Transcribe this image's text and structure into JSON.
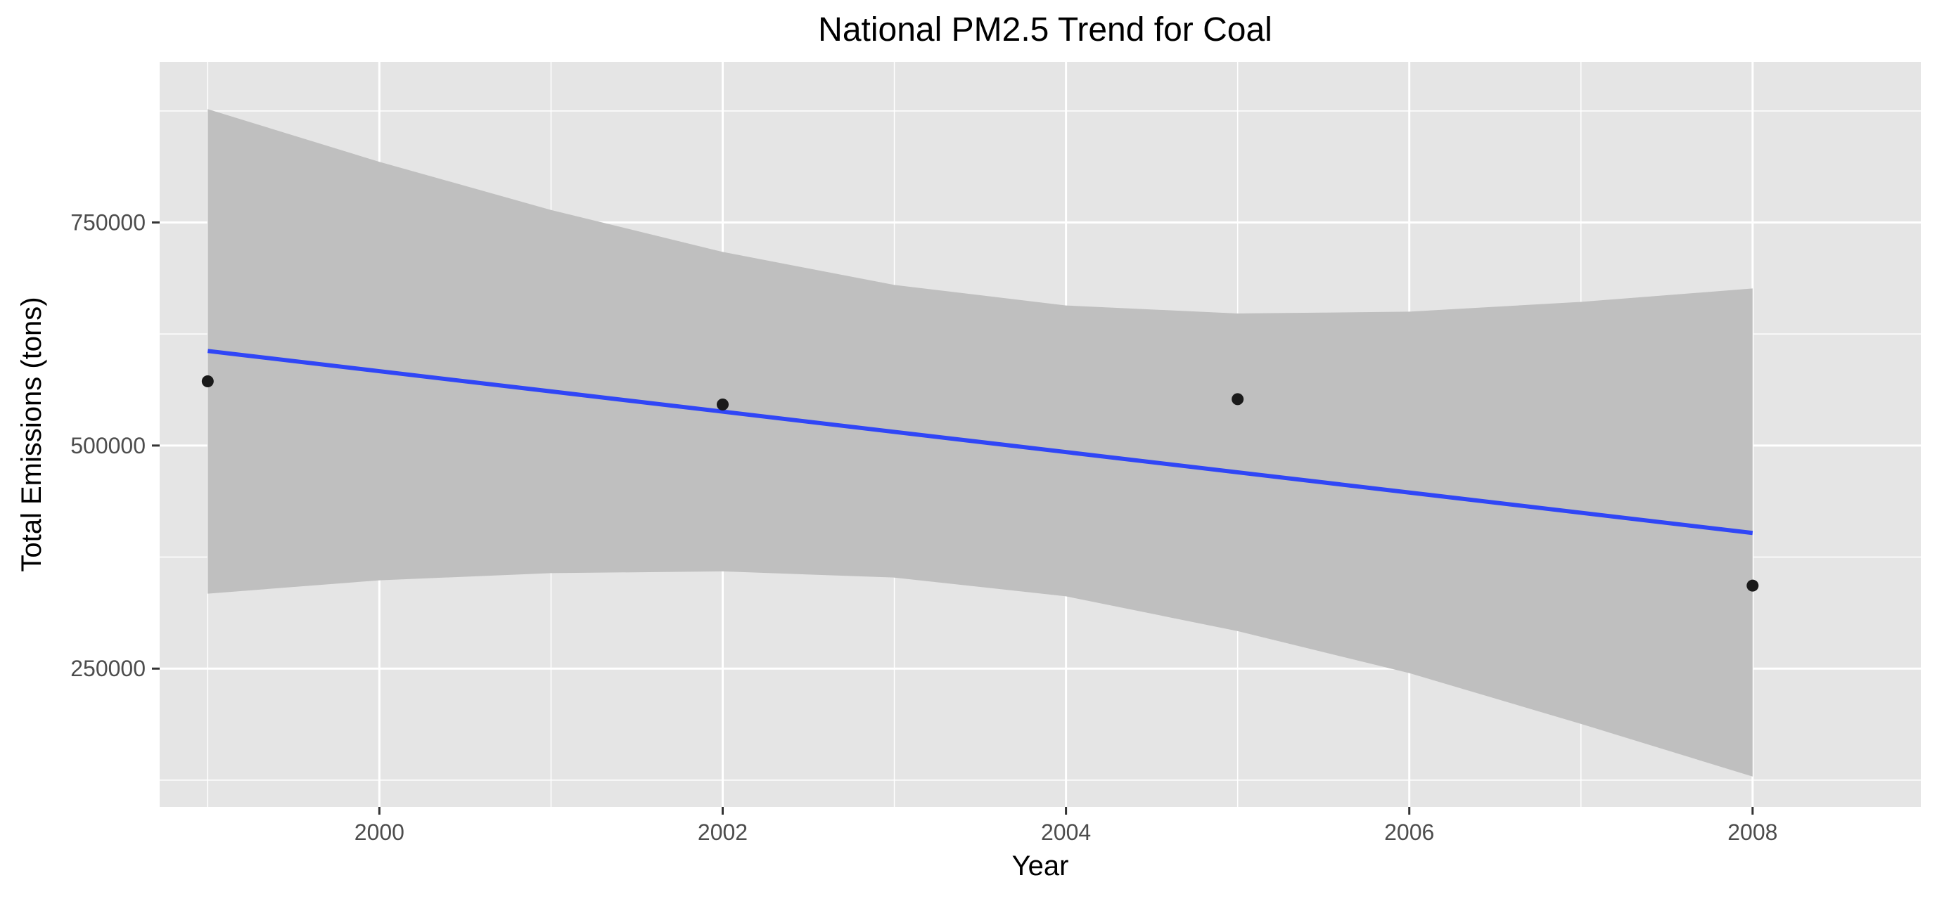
{
  "chart_data": {
    "type": "scatter",
    "title": "National PM2.5 Trend for Coal",
    "xlabel": "Year",
    "ylabel": "Total Emissions (tons)",
    "xlim": [
      1998.72,
      2008.98
    ],
    "ylim": [
      95000,
      930000
    ],
    "x_major_ticks": [
      2000,
      2002,
      2004,
      2006,
      2008
    ],
    "x_tick_labels": [
      "2000",
      "2002",
      "2004",
      "2006",
      "2008"
    ],
    "x_minor_ticks": [
      1999,
      2001,
      2003,
      2005,
      2007
    ],
    "y_major_ticks": [
      250000,
      500000,
      750000
    ],
    "y_tick_labels": [
      "250000",
      "500000",
      "750000"
    ],
    "y_minor_ticks": [
      125000,
      375000,
      625000,
      875000
    ],
    "grid": true,
    "legend": "none",
    "points": [
      {
        "x": 1999,
        "y": 572000
      },
      {
        "x": 2002,
        "y": 546000
      },
      {
        "x": 2005,
        "y": 552000
      },
      {
        "x": 2008,
        "y": 343000
      }
    ],
    "trend_line": {
      "method": "linear",
      "x": [
        1999,
        2008
      ],
      "y": [
        606000,
        402000
      ]
    },
    "confidence_band": {
      "x": [
        1999,
        2000,
        2001,
        2002,
        2003,
        2004,
        2005,
        2006,
        2007,
        2008
      ],
      "upper": [
        877000,
        818000,
        764000,
        717000,
        680000,
        657000,
        648000,
        650000,
        661000,
        676000
      ],
      "lower": [
        334000,
        349000,
        357000,
        359000,
        352000,
        331000,
        292000,
        245000,
        188000,
        129000
      ]
    },
    "colors": {
      "panel": "#e5e5e5",
      "grid": "#ffffff",
      "band": "#bfbfbf",
      "line": "#3046f6",
      "point": "#1a1a1a"
    }
  }
}
